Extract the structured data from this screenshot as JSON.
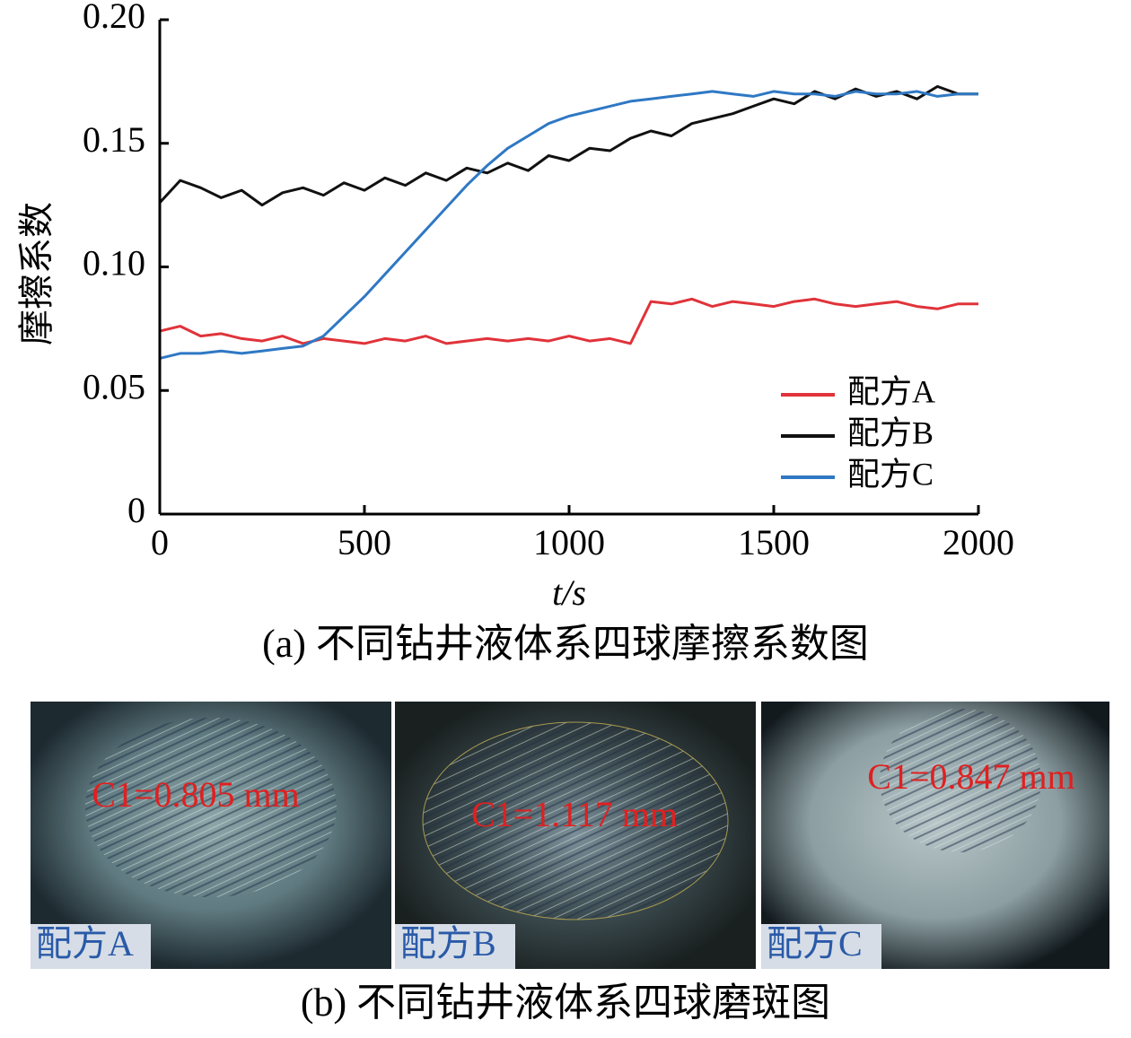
{
  "chart_data": {
    "type": "line",
    "x_label": "t/s",
    "y_label": "摩擦系数",
    "caption": "(a) 不同钻井液体系四球摩擦系数图",
    "x": [
      0,
      50,
      100,
      150,
      200,
      250,
      300,
      350,
      400,
      450,
      500,
      550,
      600,
      650,
      700,
      750,
      800,
      850,
      900,
      950,
      1000,
      1050,
      1100,
      1150,
      1200,
      1250,
      1300,
      1350,
      1400,
      1450,
      1500,
      1550,
      1600,
      1650,
      1700,
      1750,
      1800,
      1850,
      1900,
      1950,
      2000
    ],
    "series": [
      {
        "name": "配方A",
        "color": "#e0333a",
        "values": [
          0.074,
          0.076,
          0.072,
          0.073,
          0.071,
          0.07,
          0.072,
          0.069,
          0.071,
          0.07,
          0.069,
          0.071,
          0.07,
          0.072,
          0.069,
          0.07,
          0.071,
          0.07,
          0.071,
          0.07,
          0.072,
          0.07,
          0.071,
          0.069,
          0.086,
          0.085,
          0.087,
          0.084,
          0.086,
          0.085,
          0.084,
          0.086,
          0.087,
          0.085,
          0.084,
          0.085,
          0.086,
          0.084,
          0.083,
          0.085,
          0.085
        ]
      },
      {
        "name": "配方B",
        "color": "#111111",
        "values": [
          0.126,
          0.135,
          0.132,
          0.128,
          0.131,
          0.125,
          0.13,
          0.132,
          0.129,
          0.134,
          0.131,
          0.136,
          0.133,
          0.138,
          0.135,
          0.14,
          0.138,
          0.142,
          0.139,
          0.145,
          0.143,
          0.148,
          0.147,
          0.152,
          0.155,
          0.153,
          0.158,
          0.16,
          0.162,
          0.165,
          0.168,
          0.166,
          0.171,
          0.168,
          0.172,
          0.169,
          0.171,
          0.168,
          0.173,
          0.17,
          0.17
        ]
      },
      {
        "name": "配方C",
        "color": "#2f78c4",
        "values": [
          0.063,
          0.065,
          0.065,
          0.066,
          0.065,
          0.066,
          0.067,
          0.068,
          0.072,
          0.08,
          0.088,
          0.097,
          0.106,
          0.115,
          0.124,
          0.133,
          0.141,
          0.148,
          0.153,
          0.158,
          0.161,
          0.163,
          0.165,
          0.167,
          0.168,
          0.169,
          0.17,
          0.171,
          0.17,
          0.169,
          0.171,
          0.17,
          0.17,
          0.169,
          0.171,
          0.17,
          0.17,
          0.171,
          0.169,
          0.17,
          0.17
        ]
      }
    ],
    "xlim": [
      0,
      2000
    ],
    "xticks": [
      0,
      500,
      1000,
      1500,
      2000
    ],
    "ylim": [
      0,
      0.2
    ],
    "yticks": [
      0,
      0.05,
      {
        "value": 0.1,
        "label": "0.10"
      },
      0.15,
      {
        "value": 0.2,
        "label": "0.20"
      }
    ],
    "legend": "lower right"
  },
  "photos": {
    "panels": [
      {
        "label": "配方A",
        "measurement": "C1=0.805 mm"
      },
      {
        "label": "配方B",
        "measurement": "C1=1.117 mm"
      },
      {
        "label": "配方C",
        "measurement": "C1=0.847 mm"
      }
    ],
    "caption": "(b) 不同钻井液体系四球磨斑图"
  }
}
